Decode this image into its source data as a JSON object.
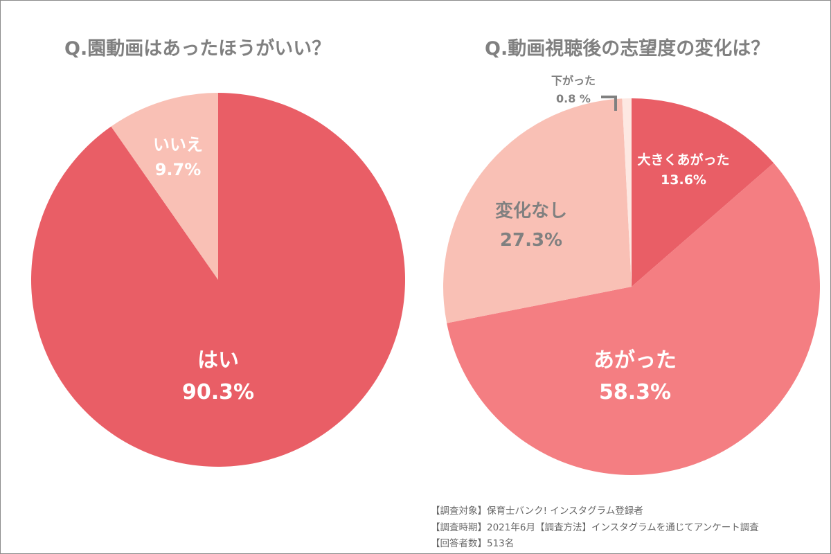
{
  "chart_data": [
    {
      "type": "pie",
      "title": "Q.園動画はあったほうがいい？",
      "slices": [
        {
          "label": "はい",
          "value": 90.3,
          "display": "90.3%",
          "color": "#E95E66",
          "text_color": "#FFFFFF"
        },
        {
          "label": "いいえ",
          "value": 9.7,
          "display": "9.7%",
          "color": "#F9C0B5",
          "text_color": "#FFFFFF"
        }
      ],
      "start_angle": "12 o'clock",
      "direction": "clockwise"
    },
    {
      "type": "pie",
      "title": "Q.動画視聴後の志望度の変化は？",
      "slices": [
        {
          "label": "大きくあがった",
          "value": 13.6,
          "display": "13.6%",
          "color": "#E95E66",
          "text_color": "#FFFFFF"
        },
        {
          "label": "あがった",
          "value": 58.3,
          "display": "58.3%",
          "color": "#F47E82",
          "text_color": "#FFFFFF"
        },
        {
          "label": "変化なし",
          "value": 27.3,
          "display": "27.3%",
          "color": "#F9C0B5",
          "text_color": "#808080"
        },
        {
          "label": "下がった",
          "value": 0.8,
          "display": "0.8 %",
          "color": "#FDE8E2",
          "text_color": "#808080"
        }
      ],
      "start_angle": "12 o'clock",
      "direction": "clockwise"
    }
  ],
  "footer": [
    "【調査対象】保育士バンク! インスタグラム登録者",
    "【調査時期】2021年6月【調査方法】インスタグラムを通じてアンケート調査",
    "【回答者数】513名"
  ]
}
